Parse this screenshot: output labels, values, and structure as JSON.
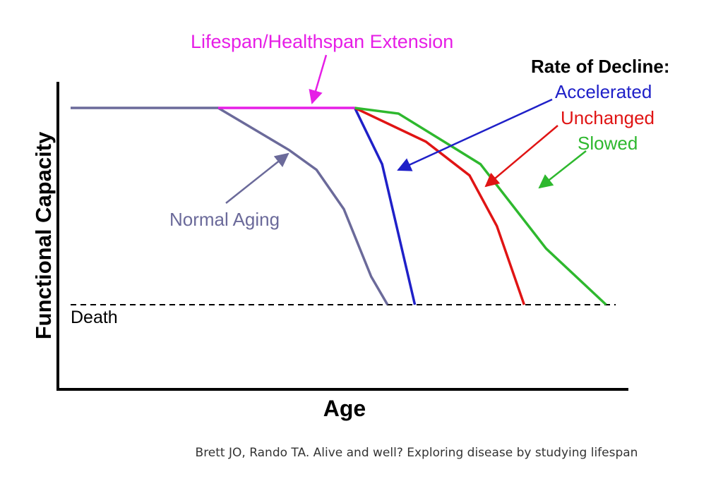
{
  "chart_data": {
    "type": "line",
    "title": "",
    "xlabel": "Age",
    "ylabel": "Functional Capacity",
    "xlim": [
      0,
      100
    ],
    "ylim": [
      0,
      100
    ],
    "grid": false,
    "reference_lines": [
      {
        "name": "death",
        "label": "Death",
        "y": 30,
        "style": "dashed",
        "color": "#000000"
      }
    ],
    "series": [
      {
        "name": "Normal Aging",
        "color": "#6b6a9a",
        "x": [
          0,
          27,
          40,
          45,
          50,
          55,
          58
        ],
        "y": [
          100,
          100,
          85,
          78,
          64,
          40,
          30
        ]
      },
      {
        "name": "Lifespan/Healthspan Extension",
        "color": "#e61ee6",
        "x": [
          27,
          52
        ],
        "y": [
          100,
          100
        ]
      },
      {
        "name": "Accelerated",
        "color": "#1f20c8",
        "x": [
          52,
          57,
          63
        ],
        "y": [
          100,
          80,
          30
        ]
      },
      {
        "name": "Unchanged",
        "color": "#e01414",
        "x": [
          52,
          65,
          73,
          78,
          83
        ],
        "y": [
          100,
          88,
          76,
          58,
          30
        ]
      },
      {
        "name": "Slowed",
        "color": "#2eb82e",
        "x": [
          52,
          60,
          75,
          87,
          98
        ],
        "y": [
          100,
          98,
          80,
          50,
          30
        ]
      }
    ],
    "annotations": [
      {
        "name": "extension",
        "text": "Lifespan/Healthspan Extension",
        "color": "#e61ee6",
        "points_to": "Lifespan/Healthspan Extension"
      },
      {
        "name": "normal",
        "text": "Normal Aging",
        "color": "#6b6a9a",
        "points_to": "Normal Aging"
      },
      {
        "name": "accelerated",
        "text": "Accelerated",
        "color": "#1f20c8",
        "points_to": "Accelerated"
      },
      {
        "name": "unchanged",
        "text": "Unchanged",
        "color": "#e01414",
        "points_to": "Unchanged"
      },
      {
        "name": "slowed",
        "text": "Slowed",
        "color": "#2eb82e",
        "points_to": "Slowed"
      }
    ],
    "legend_title": "Rate of Decline:"
  },
  "caption": "Brett JO, Rando TA. Alive and well? Exploring disease by studying lifespan"
}
